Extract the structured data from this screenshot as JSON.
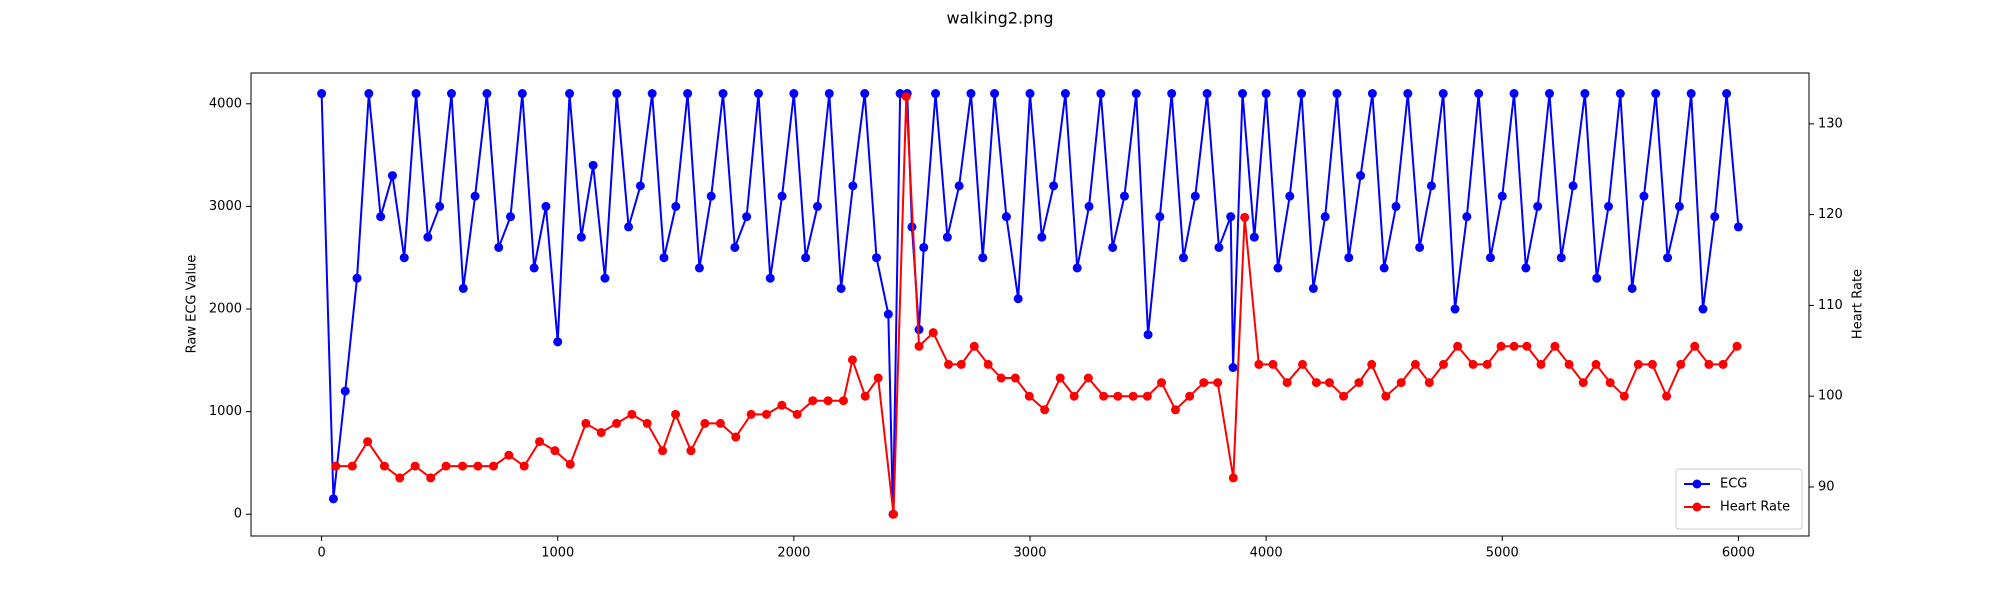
{
  "chart_data": {
    "type": "line",
    "title": "walking2.png",
    "ylabel": "Raw ECG Value",
    "y2label": "Heart Rate",
    "xlim": [
      -299,
      6299
    ],
    "ylim": [
      -212,
      4300
    ],
    "y2lim": [
      84.6,
      135.6
    ],
    "xticks": [
      0,
      1000,
      2000,
      3000,
      4000,
      5000,
      6000
    ],
    "yticks": [
      0,
      1000,
      2000,
      3000,
      4000
    ],
    "y2ticks": [
      90,
      100,
      110,
      120,
      130
    ],
    "legend": "lower right",
    "markers": true,
    "series": [
      {
        "name": "ECG",
        "color": "#0000ff",
        "x": [
          0,
          50,
          100,
          150,
          200,
          250,
          300,
          350,
          400,
          450,
          500,
          550,
          600,
          650,
          700,
          750,
          800,
          850,
          900,
          950,
          1000,
          1050,
          1100,
          1150,
          1200,
          1250,
          1300,
          1350,
          1400,
          1450,
          1500,
          1550,
          1600,
          1650,
          1700,
          1750,
          1800,
          1850,
          1900,
          1950,
          2000,
          2050,
          2100,
          2150,
          2200,
          2250,
          2300,
          2350,
          2400,
          2420,
          2450,
          2480,
          2500,
          2530,
          2550,
          2600,
          2650,
          2700,
          2750,
          2800,
          2850,
          2900,
          2950,
          3000,
          3050,
          3100,
          3150,
          3200,
          3250,
          3300,
          3350,
          3400,
          3450,
          3500,
          3550,
          3600,
          3650,
          3700,
          3750,
          3800,
          3850,
          3860,
          3900,
          3950,
          4000,
          4050,
          4100,
          4150,
          4200,
          4250,
          4300,
          4350,
          4400,
          4450,
          4500,
          4550,
          4600,
          4650,
          4700,
          4750,
          4800,
          4850,
          4900,
          4950,
          5000,
          5050,
          5100,
          5150,
          5200,
          5250,
          5300,
          5350,
          5400,
          5450,
          5500,
          5550,
          5600,
          5650,
          5700,
          5750,
          5800,
          5850,
          5900,
          5950,
          6000
        ],
        "values": [
          4100,
          150,
          1200,
          2300,
          4100,
          2900,
          3300,
          2500,
          4100,
          2700,
          3000,
          4100,
          2200,
          3100,
          4100,
          2600,
          2900,
          4100,
          2400,
          3000,
          1680,
          4100,
          2700,
          3400,
          2300,
          4100,
          2800,
          3200,
          4100,
          2500,
          3000,
          4100,
          2400,
          3100,
          4100,
          2600,
          2900,
          4100,
          2300,
          3100,
          4100,
          2500,
          3000,
          4100,
          2200,
          3200,
          4100,
          2500,
          1950,
          0,
          4100,
          4100,
          2800,
          1800,
          2600,
          4100,
          2700,
          3200,
          4100,
          2500,
          4100,
          2900,
          2100,
          4100,
          2700,
          3200,
          4100,
          2400,
          3000,
          4100,
          2600,
          3100,
          4100,
          1750,
          2900,
          4100,
          2500,
          3100,
          4100,
          2600,
          2900,
          1430,
          4100,
          2700,
          4100,
          2400,
          3100,
          4100,
          2200,
          2900,
          4100,
          2500,
          3300,
          4100,
          2400,
          3000,
          4100,
          2600,
          3200,
          4100,
          2000,
          2900,
          4100,
          2500,
          3100,
          4100,
          2400,
          3000,
          4100,
          2500,
          3200,
          4100,
          2300,
          3000,
          4100,
          2200,
          3100,
          4100,
          2500,
          3000,
          4100,
          2000,
          2900,
          4100,
          2800
        ]
      },
      {
        "name": "Heart Rate",
        "color": "#ff0000",
        "axis": "y2",
        "x": [
          60,
          130,
          195,
          266,
          331,
          396,
          462,
          527,
          597,
          662,
          728,
          793,
          858,
          923,
          988,
          1053,
          1119,
          1184,
          1249,
          1314,
          1379,
          1444,
          1499,
          1564,
          1623,
          1689,
          1754,
          1819,
          1884,
          1949,
          2014,
          2080,
          2145,
          2210,
          2248,
          2302,
          2357,
          2422,
          2476,
          2530,
          2590,
          2655,
          2709,
          2764,
          2823,
          2878,
          2938,
          2997,
          3062,
          3128,
          3187,
          3247,
          3312,
          3372,
          3437,
          3497,
          3557,
          3616,
          3676,
          3736,
          3795,
          3861,
          3909,
          3969,
          4029,
          4089,
          4154,
          4213,
          4268,
          4328,
          4393,
          4447,
          4507,
          4572,
          4632,
          4691,
          4751,
          4811,
          4876,
          4936,
          4995,
          5050,
          5104,
          5164,
          5223,
          5283,
          5343,
          5397,
          5457,
          5517,
          5576,
          5636,
          5696,
          5756,
          5815,
          5875,
          5935,
          5994
        ],
        "values": [
          92.3,
          92.3,
          95,
          92.3,
          91,
          92.3,
          91,
          92.3,
          92.3,
          92.3,
          92.3,
          93.5,
          92.3,
          95,
          94,
          92.5,
          97,
          96,
          97,
          98,
          97,
          94,
          98,
          94,
          97,
          97,
          95.5,
          98,
          98,
          99,
          98,
          99.5,
          99.5,
          99.5,
          104,
          100,
          102,
          87,
          133,
          105.5,
          107,
          103.5,
          103.5,
          105.5,
          103.5,
          102,
          102,
          100,
          98.5,
          102,
          100,
          102,
          100,
          100,
          100,
          100,
          101.5,
          98.5,
          100,
          101.5,
          101.5,
          91,
          119.7,
          103.5,
          103.5,
          101.5,
          103.5,
          101.5,
          101.5,
          100,
          101.5,
          103.5,
          100,
          101.5,
          103.5,
          101.5,
          103.5,
          105.5,
          103.5,
          103.5,
          105.5,
          105.5,
          105.5,
          103.5,
          105.5,
          103.5,
          101.5,
          103.5,
          101.5,
          100,
          103.5,
          103.5,
          100,
          103.5,
          105.5,
          103.5,
          103.5,
          105.5
        ]
      }
    ]
  }
}
